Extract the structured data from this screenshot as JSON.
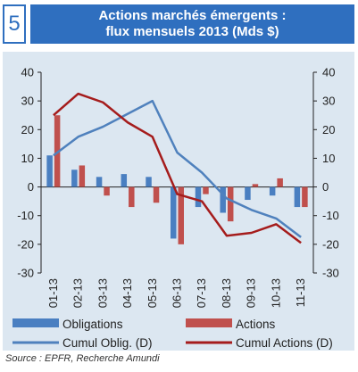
{
  "header": {
    "number": "5",
    "title_line1": "Actions marchés émergents :",
    "title_line2": "flux mensuels 2013 (Mds $)"
  },
  "colors": {
    "accent": "#2f6fbf",
    "chart_bg": "#dce7f1",
    "obligations": "#4a7fc1",
    "actions": "#c0504d",
    "cumul_oblig": "#4f81bd",
    "cumul_actions": "#a51c1c"
  },
  "source": "Source : EPFR, Recherche Amundi",
  "chart_data": {
    "type": "bar",
    "categories": [
      "01-13",
      "02-13",
      "03-13",
      "04-13",
      "05-13",
      "06-13",
      "07-13",
      "08-13",
      "09-13",
      "10-13",
      "11-13"
    ],
    "ylim": [
      -30,
      40
    ],
    "yticks": [
      -30,
      -20,
      -10,
      0,
      10,
      20,
      30,
      40
    ],
    "ytick_labels": [
      "-30",
      "-20",
      "-10",
      "0",
      "10",
      "20",
      "30",
      "40"
    ],
    "series": [
      {
        "name": "Obligations",
        "type": "bar",
        "values": [
          11,
          6,
          3.5,
          4.5,
          3.5,
          -18,
          -7,
          -9,
          -4.5,
          -3,
          -7
        ]
      },
      {
        "name": "Actions",
        "type": "bar",
        "values": [
          25,
          7.5,
          -3,
          -7,
          -5.5,
          -20,
          -2.5,
          -12,
          1,
          3,
          -7
        ]
      },
      {
        "name": "Cumul Oblig. (D)",
        "type": "line",
        "values": [
          11,
          17.5,
          21,
          25.5,
          30,
          12,
          5,
          -4,
          -8,
          -11,
          -17.5
        ]
      },
      {
        "name": "Cumul Actions (D)",
        "type": "line",
        "values": [
          25,
          32.5,
          29.5,
          22.5,
          17.5,
          -2.5,
          -5,
          -17,
          -16,
          -13,
          -19.5
        ]
      }
    ],
    "legend": {
      "placement": "bottom",
      "items": [
        "Obligations",
        "Actions",
        "Cumul Oblig. (D)",
        "Cumul Actions (D)"
      ]
    },
    "grid": false
  }
}
